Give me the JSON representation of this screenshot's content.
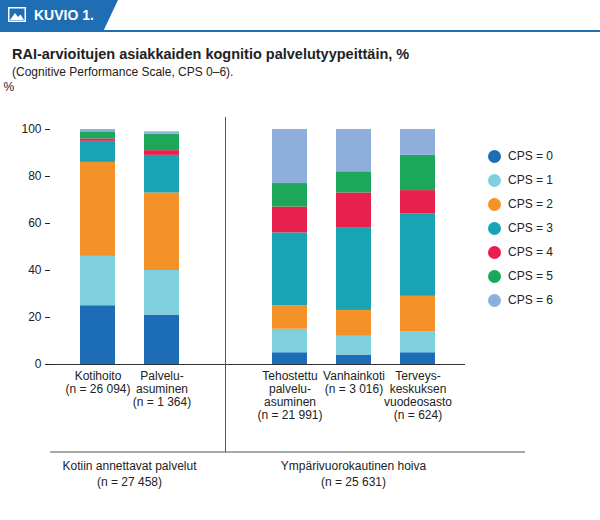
{
  "figure_label": "KUVIO 1.",
  "chart_data": {
    "type": "bar",
    "stacked": true,
    "title": "RAI-arvioitujen asiakkaiden kognitio palvelutyypeittäin, %",
    "subtitle": "(Cognitive Performance Scale, CPS 0–6).",
    "y_label": "%",
    "categories": [
      "Kotihoito\n(n = 26 094)",
      "Palvelu-\nasuminen\n(n = 1 364)",
      "Tehostettu\npalvelu-\nasuminen\n(n = 21 991)",
      "Vanhainkoti\n(n = 3 016)",
      "Terveys-\nkeskuksen\nvuodeosasto\n(n = 624)"
    ],
    "series": [
      {
        "name": "CPS = 0",
        "color": "#1c6db5",
        "values": [
          25,
          21,
          5,
          4,
          5
        ]
      },
      {
        "name": "CPS = 1",
        "color": "#7fd0dd",
        "values": [
          21,
          19,
          10,
          8,
          9
        ]
      },
      {
        "name": "CPS = 2",
        "color": "#f59129",
        "values": [
          40,
          33,
          10,
          11,
          15
        ]
      },
      {
        "name": "CPS = 3",
        "color": "#18a4b5",
        "values": [
          9,
          16,
          31,
          35,
          35
        ]
      },
      {
        "name": "CPS = 4",
        "color": "#e8204e",
        "values": [
          1,
          2,
          11,
          15,
          10
        ]
      },
      {
        "name": "CPS = 5",
        "color": "#1ca75a",
        "values": [
          3,
          7,
          10,
          9,
          15
        ]
      },
      {
        "name": "CPS = 6",
        "color": "#8eafdc",
        "values": [
          1,
          1,
          23,
          18,
          11
        ]
      }
    ],
    "groups": [
      {
        "label": "Kotiin annettavat palvelut\n(n = 27 458)",
        "categories": [
          0,
          1
        ]
      },
      {
        "label": "Ympärivuorokautinen hoiva\n(n = 25 631)",
        "categories": [
          2,
          3,
          4
        ]
      }
    ],
    "ylim": [
      0,
      100
    ],
    "yticks": [
      0,
      20,
      40,
      60,
      80,
      100
    ],
    "grid": false,
    "legend": "right"
  }
}
